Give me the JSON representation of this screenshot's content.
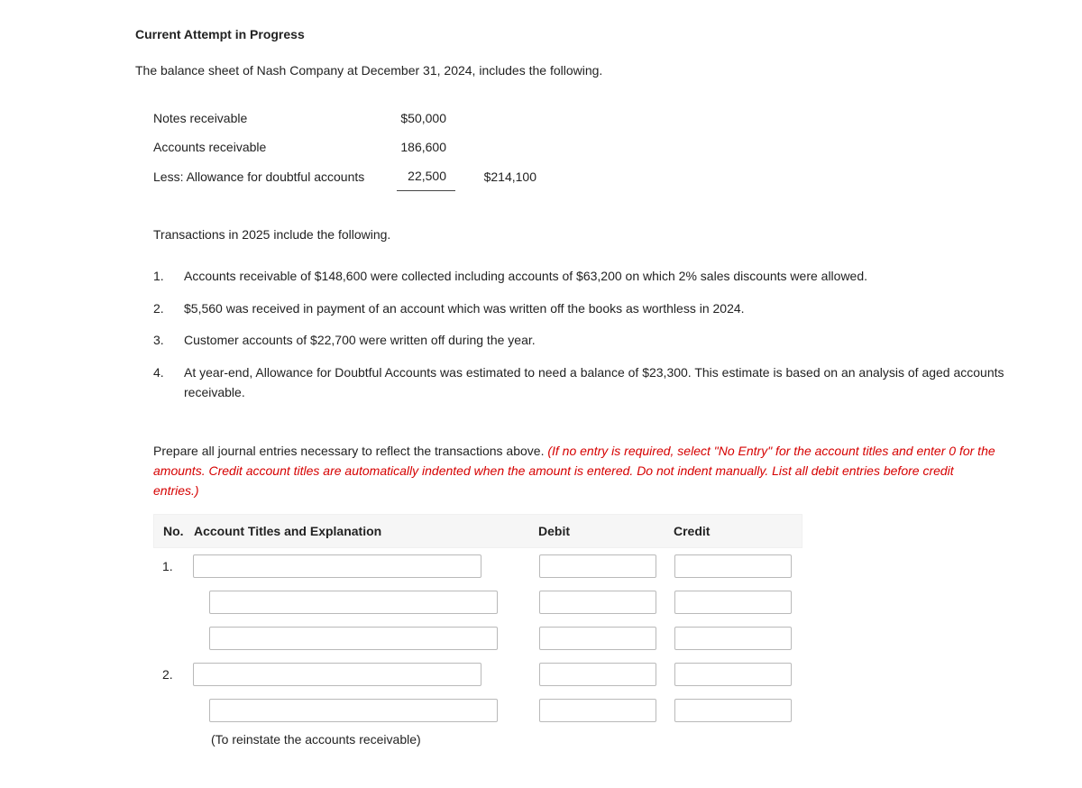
{
  "heading": "Current Attempt in Progress",
  "intro": "The balance sheet of Nash Company at December 31, 2024, includes the following.",
  "balance_sheet": {
    "rows": [
      {
        "label": "Notes receivable",
        "amount": "$50,000",
        "total": ""
      },
      {
        "label": "Accounts receivable",
        "amount": "186,600",
        "total": ""
      },
      {
        "label": "Less: Allowance for doubtful accounts",
        "amount": "22,500",
        "total": "$214,100"
      }
    ]
  },
  "subheading": "Transactions in 2025 include the following.",
  "transactions": [
    {
      "num": "1.",
      "text": "Accounts receivable of $148,600 were collected including accounts of $63,200 on which 2% sales discounts were allowed."
    },
    {
      "num": "2.",
      "text": "$5,560 was received in payment of an account which was written off the books as worthless in 2024."
    },
    {
      "num": "3.",
      "text": "Customer accounts of $22,700 were written off during the year."
    },
    {
      "num": "4.",
      "text": "At year-end, Allowance for Doubtful Accounts was estimated to need a balance of $23,300. This estimate is based on an analysis of aged accounts receivable."
    }
  ],
  "instructions": {
    "plain": "Prepare all journal entries necessary to reflect the transactions above. ",
    "red": "(If no entry is required, select \"No Entry\" for the account titles and enter 0 for the amounts. Credit account titles are automatically indented when the amount is entered. Do not indent manually. List all debit entries before credit entries.)"
  },
  "table": {
    "headers": {
      "no": "No.",
      "account": "Account Titles and Explanation",
      "debit": "Debit",
      "credit": "Credit"
    },
    "groups": [
      {
        "no": "1.",
        "rows": [
          {
            "indent": false
          },
          {
            "indent": true
          },
          {
            "indent": true
          }
        ]
      },
      {
        "no": "2.",
        "rows": [
          {
            "indent": false
          },
          {
            "indent": true
          }
        ],
        "explanation": "(To reinstate the accounts receivable)"
      }
    ]
  }
}
